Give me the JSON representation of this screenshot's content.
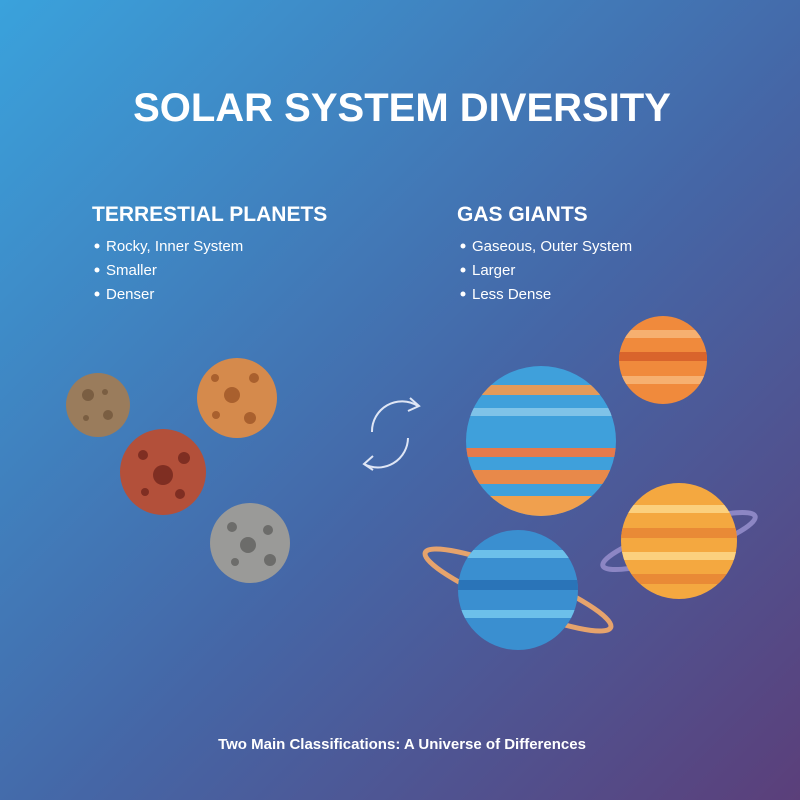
{
  "title": "SOLAR SYSTEM DIVERSITY",
  "terrestrial": {
    "heading": "TERRESTIAL PLANETS",
    "items": [
      "Rocky, Inner System",
      "Smaller",
      "Denser"
    ]
  },
  "gas_giants": {
    "heading": "GAS GIANTS",
    "items": [
      "Gaseous, Outer System",
      "Larger",
      "Less Dense"
    ]
  },
  "footer": "Two Main Classifications: A Universe of Differences"
}
